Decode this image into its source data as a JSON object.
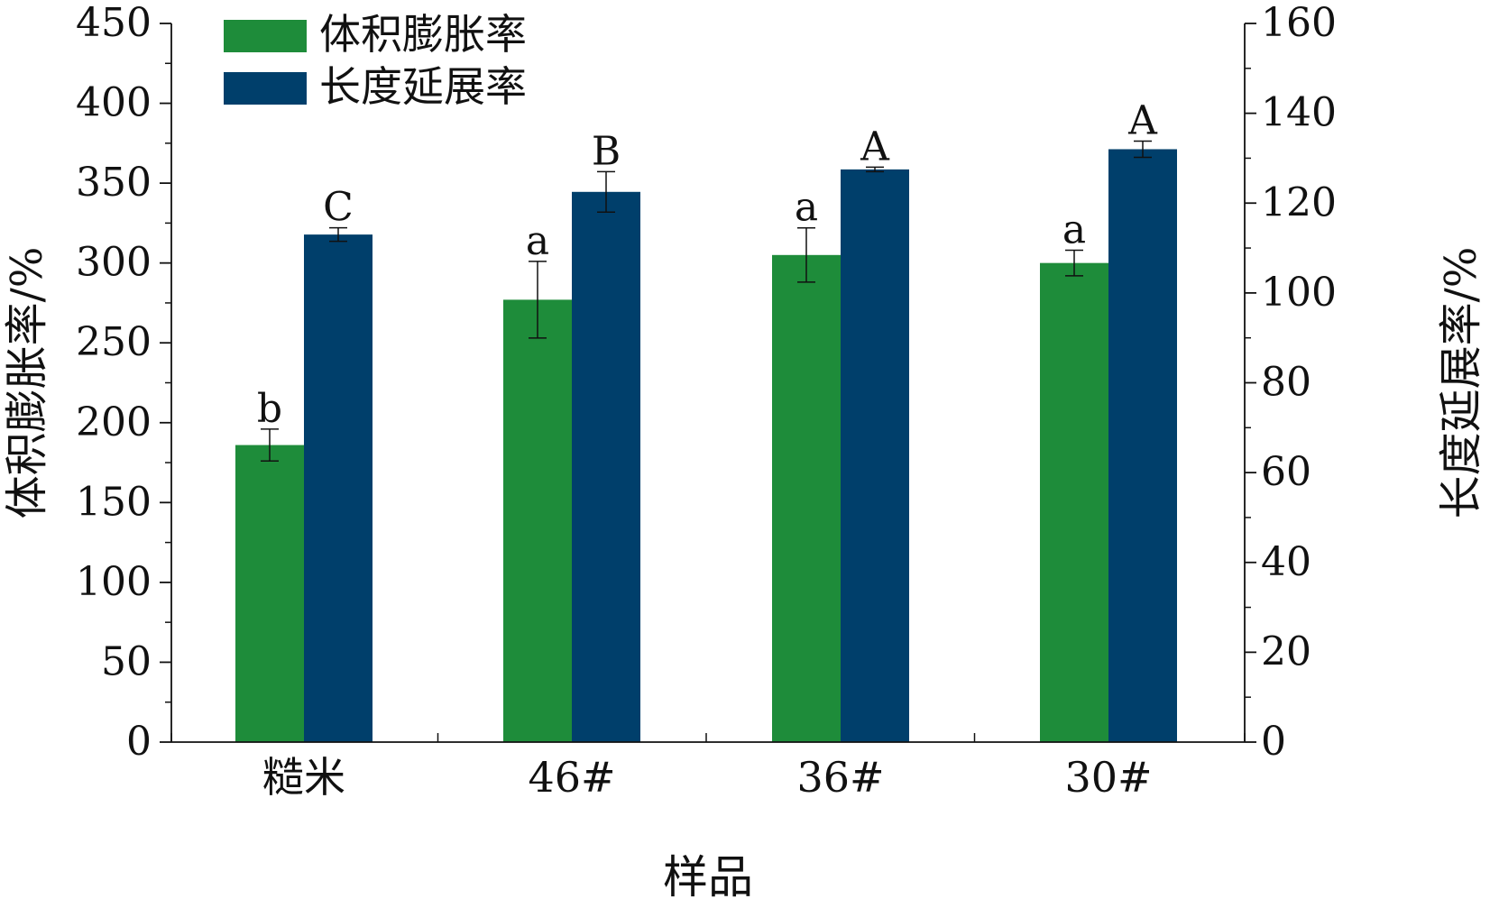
{
  "chart_data": {
    "type": "bar",
    "categories": [
      "糙米",
      "46#",
      "36#",
      "30#"
    ],
    "xlabel": "样品",
    "ylabel_left": "体积膨胀率/%",
    "ylabel_right": "长度延展率/%",
    "ylim_left": [
      0,
      450
    ],
    "ylim_right": [
      0,
      160
    ],
    "yticks_left": [
      0,
      50,
      100,
      150,
      200,
      250,
      300,
      350,
      400,
      450
    ],
    "yticks_right": [
      0,
      20,
      40,
      60,
      80,
      100,
      120,
      140,
      160
    ],
    "legend_position": "top-left",
    "grid": false,
    "series": [
      {
        "name": "体积膨胀率",
        "axis": "left",
        "color": "#1e8c3a",
        "values": [
          186,
          277,
          305,
          300
        ],
        "errors": [
          10,
          24,
          17,
          8
        ],
        "labels": [
          "b",
          "a",
          "a",
          "a"
        ]
      },
      {
        "name": "长度延展率",
        "axis": "right",
        "color": "#003f6b",
        "values": [
          113,
          122.5,
          127.5,
          132
        ],
        "errors": [
          1.5,
          4.5,
          0.5,
          1.8
        ],
        "labels": [
          "C",
          "B",
          "A",
          "A"
        ]
      }
    ]
  }
}
